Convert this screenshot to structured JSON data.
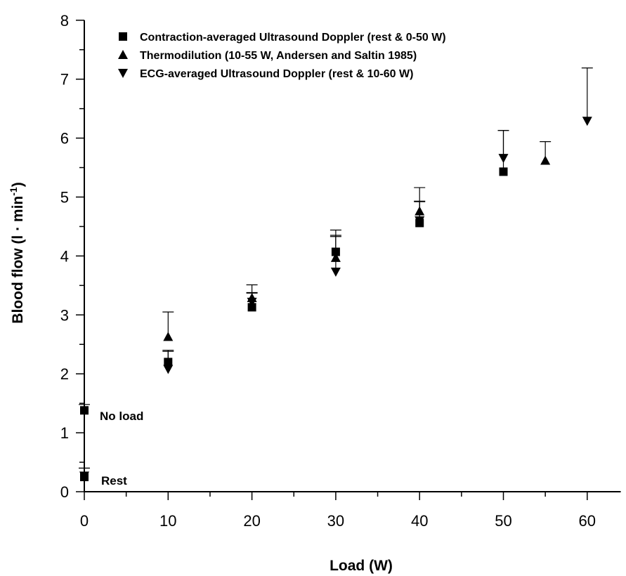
{
  "chart_data": {
    "type": "scatter",
    "title": "",
    "xlabel": "Load (W)",
    "ylabel_main": "Blood flow (l · min",
    "ylabel_sup": "-1",
    "ylabel_close": ")",
    "xlim": [
      0,
      64
    ],
    "ylim": [
      0,
      8
    ],
    "xticks": [
      0,
      10,
      20,
      30,
      40,
      50,
      60
    ],
    "yticks": [
      0,
      1,
      2,
      3,
      4,
      5,
      6,
      7,
      8
    ],
    "grid": false,
    "legend_position": "top-left",
    "series": [
      {
        "name": "Contraction-averaged Ultrasound Doppler (rest & 0-50 W)",
        "marker": "square",
        "points": [
          {
            "x": 0,
            "y": 0.25,
            "err": 0.15
          },
          {
            "x": 0,
            "y": 1.38,
            "err": 0.1
          },
          {
            "x": 10,
            "y": 2.2,
            "err": 0.2
          },
          {
            "x": 20,
            "y": 3.13,
            "err": 0.25
          },
          {
            "x": 30,
            "y": 4.07,
            "err": 0.28
          },
          {
            "x": 40,
            "y": 4.56,
            "err": 0.37
          },
          {
            "x": 50,
            "y": 5.43,
            "err": 0.7
          }
        ]
      },
      {
        "name": "Thermodilution (10-55 W, Andersen and Saltin 1985)",
        "marker": "triangle-up",
        "points": [
          {
            "x": 10,
            "y": 2.63,
            "err": 0.42
          },
          {
            "x": 20,
            "y": 3.29,
            "err": 0.22
          },
          {
            "x": 30,
            "y": 3.97,
            "err": 0.47
          },
          {
            "x": 40,
            "y": 4.76,
            "err": 0.4
          },
          {
            "x": 55,
            "y": 5.62,
            "err": 0.32
          }
        ]
      },
      {
        "name": "ECG-averaged Ultrasound Doppler (rest & 10-60 W)",
        "marker": "triangle-down",
        "points": [
          {
            "x": 0,
            "y": 0.27,
            "err": 0.13
          },
          {
            "x": 10,
            "y": 2.08,
            "err": 0.3
          },
          {
            "x": 20,
            "y": 3.22,
            "err": 0.15
          },
          {
            "x": 30,
            "y": 3.73,
            "err": 0.6
          },
          {
            "x": 40,
            "y": 4.6,
            "err": 0.32
          },
          {
            "x": 50,
            "y": 5.66,
            "err": 0.47
          },
          {
            "x": 60,
            "y": 6.29,
            "err": 0.9
          }
        ]
      }
    ],
    "annotations": [
      {
        "text": "No load",
        "x": 0,
        "y": 1.38
      },
      {
        "text": "Rest",
        "x": 0,
        "y": 0.25
      }
    ]
  }
}
